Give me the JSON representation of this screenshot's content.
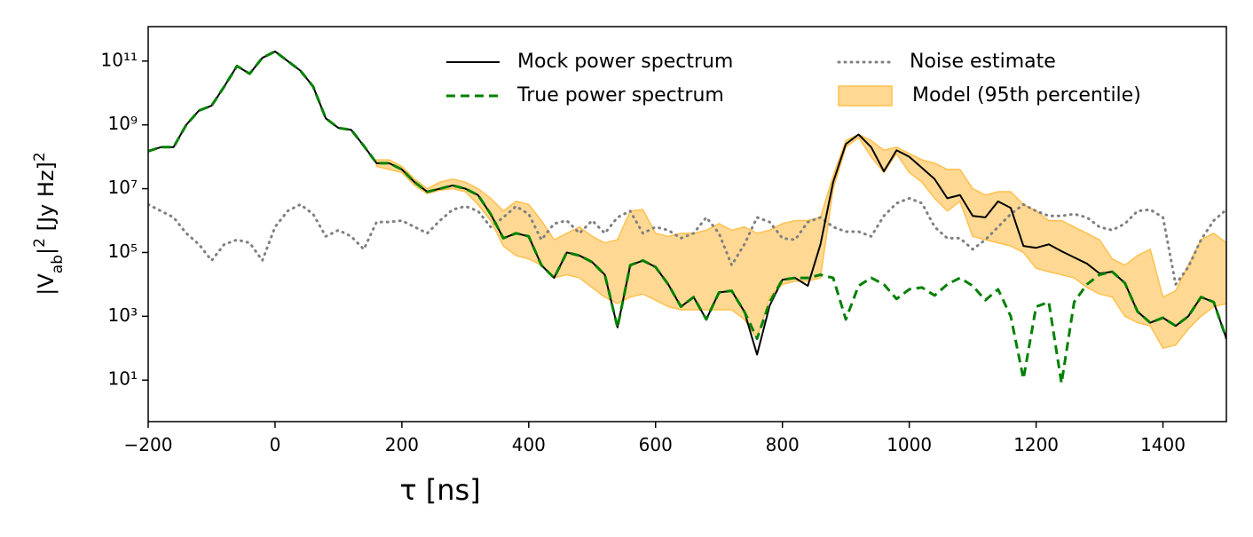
{
  "chart_data": {
    "type": "line",
    "xlabel": "τ [ns]",
    "ylabel": [
      "|V",
      "ab",
      "|",
      "2",
      " [Jy Hz]",
      "2"
    ],
    "log_y": true,
    "legend": "upper right",
    "xlim": [
      -200,
      1500
    ],
    "xticks": [
      {
        "value": -200,
        "label": "−200"
      },
      0,
      200,
      400,
      600,
      800,
      1000,
      1200,
      1400
    ],
    "ylim": [
      0.5,
      1200000000000.0
    ],
    "yticks": [
      {
        "value": 10,
        "label": "10¹"
      },
      {
        "value": 1000,
        "label": "10³"
      },
      {
        "value": 100000,
        "label": "10⁵"
      },
      {
        "value": 10000000,
        "label": "10⁷"
      },
      {
        "value": 1000000000,
        "label": "10⁹"
      },
      {
        "value": 100000000000,
        "label": "10¹¹"
      }
    ],
    "x": [
      -200,
      -180,
      -160,
      -140,
      -120,
      -100,
      -80,
      -60,
      -40,
      -20,
      0,
      20,
      40,
      60,
      80,
      100,
      120,
      140,
      160,
      180,
      200,
      220,
      240,
      260,
      280,
      300,
      320,
      340,
      360,
      380,
      400,
      420,
      440,
      460,
      480,
      500,
      520,
      540,
      560,
      580,
      600,
      620,
      640,
      660,
      680,
      700,
      720,
      740,
      760,
      780,
      800,
      820,
      840,
      860,
      880,
      900,
      920,
      940,
      960,
      980,
      1000,
      1020,
      1040,
      1060,
      1080,
      1100,
      1120,
      1140,
      1160,
      1180,
      1200,
      1220,
      1240,
      1260,
      1280,
      1300,
      1320,
      1340,
      1360,
      1380,
      1400,
      1420,
      1440,
      1460,
      1480,
      1500
    ],
    "band": {
      "name": "Model (95th percentile)",
      "color": "#ffc04d",
      "upper": [
        null,
        null,
        null,
        null,
        null,
        null,
        null,
        null,
        null,
        null,
        null,
        null,
        null,
        null,
        null,
        null,
        null,
        null,
        80000000.0,
        80000000.0,
        50000000.0,
        20000000.0,
        10000000.0,
        16000000.0,
        20000000.0,
        16000000.0,
        10000000.0,
        5000000.0,
        2000000.0,
        4000000.0,
        3200000.0,
        1000000.0,
        250000.0,
        400000.0,
        630000.0,
        320000.0,
        200000.0,
        250000.0,
        2000000.0,
        2200000.0,
        400000.0,
        320000.0,
        400000.0,
        400000.0,
        500000.0,
        800000.0,
        500000.0,
        630000.0,
        400000.0,
        500000.0,
        800000.0,
        1000000.0,
        1000000.0,
        1260000.0,
        25000000.0,
        320000000.0,
        500000000.0,
        320000000.0,
        160000000.0,
        200000000.0,
        126000000.0,
        80000000.0,
        63000000.0,
        40000000.0,
        40000000.0,
        10000000.0,
        6300000.0,
        8000000.0,
        8000000.0,
        3200000.0,
        2000000.0,
        1000000.0,
        1000000.0,
        630000.0,
        400000.0,
        250000.0,
        63000.0,
        40000.0,
        80000.0,
        126000.0,
        4000,
        6300,
        40000.0,
        250000.0,
        400000.0,
        200000.0
      ],
      "lower": [
        null,
        null,
        null,
        null,
        null,
        null,
        null,
        null,
        null,
        null,
        null,
        null,
        null,
        null,
        null,
        null,
        null,
        null,
        50000000.0,
        40000000.0,
        32000000.0,
        12600000.0,
        7000000.0,
        9000000.0,
        10000000.0,
        8000000.0,
        3200000.0,
        1000000.0,
        160000.0,
        80000.0,
        63000.0,
        40000.0,
        16000.0,
        20000.0,
        16000.0,
        8000,
        4000,
        2500,
        4000,
        5000,
        3200,
        2000,
        1600,
        1600,
        1600,
        1600,
        1600,
        800,
        200,
        4000,
        10000.0,
        12600.0,
        12600.0,
        16000.0,
        10000000.0,
        200000000.0,
        400000000.0,
        100000000.0,
        32000000.0,
        126000000.0,
        32000000.0,
        16000000.0,
        5000000.0,
        2000000.0,
        4000000.0,
        320000.0,
        250000.0,
        200000.0,
        160000.0,
        100000.0,
        32000.0,
        25000.0,
        20000.0,
        16000.0,
        8000,
        5000,
        4000,
        1000,
        630,
        500,
        100,
        126,
        400,
        1000,
        2000,
        2500
      ]
    },
    "series": [
      {
        "name": "Noise estimate",
        "color": "#808080",
        "style": "dotted",
        "values": [
          3200000.0,
          2000000.0,
          1260000.0,
          400000.0,
          180000.0,
          56000.0,
          180000.0,
          250000.0,
          200000.0,
          56000.0,
          630000.0,
          2000000.0,
          3200000.0,
          1600000.0,
          320000.0,
          500000.0,
          320000.0,
          126000.0,
          900000.0,
          900000.0,
          1000000.0,
          630000.0,
          400000.0,
          1000000.0,
          2200000.0,
          2800000.0,
          2000000.0,
          630000.0,
          1260000.0,
          2800000.0,
          1600000.0,
          250000.0,
          800000.0,
          1000000.0,
          400000.0,
          1000000.0,
          400000.0,
          1260000.0,
          2000000.0,
          400000.0,
          630000.0,
          500000.0,
          280000.0,
          400000.0,
          1260000.0,
          400000.0,
          40000.0,
          180000.0,
          1260000.0,
          900000.0,
          280000.0,
          250000.0,
          900000.0,
          1260000.0,
          630000.0,
          450000.0,
          450000.0,
          320000.0,
          1400000.0,
          3500000.0,
          5000000.0,
          3500000.0,
          630000.0,
          280000.0,
          280000.0,
          126000.0,
          250000.0,
          630000.0,
          1600000.0,
          3200000.0,
          2000000.0,
          1400000.0,
          1400000.0,
          1600000.0,
          1260000.0,
          630000.0,
          500000.0,
          800000.0,
          2000000.0,
          2200000.0,
          1260000.0,
          10000.0,
          35000.0,
          250000.0,
          1000000.0,
          2200000.0
        ]
      },
      {
        "name": "Mock power spectrum",
        "color": "#000000",
        "style": "solid",
        "values": [
          150000000.0,
          200000000.0,
          200000000.0,
          1000000000.0,
          2800000000.0,
          4000000000.0,
          16000000000.0,
          70000000000.0,
          40000000000.0,
          126000000000.0,
          200000000000.0,
          100000000000.0,
          50000000000.0,
          16000000000.0,
          1600000000.0,
          800000000.0,
          700000000.0,
          220000000.0,
          63000000.0,
          63000000.0,
          40000000.0,
          16000000.0,
          8000000.0,
          10000000.0,
          12600000.0,
          10000000.0,
          6300000.0,
          1600000.0,
          280000.0,
          400000.0,
          320000.0,
          40000.0,
          16000.0,
          100000.0,
          80000.0,
          50000.0,
          20000.0,
          450,
          40000.0,
          56000.0,
          35000.0,
          10000.0,
          2000,
          4000,
          800,
          5600,
          6300,
          1400,
          63,
          2200,
          14000.0,
          16000.0,
          9000,
          180000.0,
          16000000.0,
          250000000.0,
          500000000.0,
          200000000.0,
          35000000.0,
          160000000.0,
          100000000.0,
          45000000.0,
          20000000.0,
          5000000.0,
          6300000.0,
          1400000.0,
          1260000.0,
          4000000.0,
          2500000.0,
          160000.0,
          140000.0,
          180000.0,
          110000.0,
          70000.0,
          45000.0,
          22000.0,
          25000.0,
          11000.0,
          1400,
          630,
          900,
          500,
          1000,
          4000,
          2800,
          200
        ]
      },
      {
        "name": "True power spectrum",
        "color": "#008000",
        "style": "dashed",
        "values": [
          150000000.0,
          200000000.0,
          200000000.0,
          1000000000.0,
          2800000000.0,
          4000000000.0,
          16000000000.0,
          70000000000.0,
          40000000000.0,
          126000000000.0,
          200000000000.0,
          100000000000.0,
          50000000000.0,
          16000000000.0,
          1600000000.0,
          800000000.0,
          700000000.0,
          220000000.0,
          63000000.0,
          63000000.0,
          40000000.0,
          16000000.0,
          8000000.0,
          10000000.0,
          12600000.0,
          10000000.0,
          6300000.0,
          1600000.0,
          280000.0,
          400000.0,
          320000.0,
          40000.0,
          16000.0,
          100000.0,
          80000.0,
          50000.0,
          20000.0,
          450,
          40000.0,
          56000.0,
          35000.0,
          10000.0,
          2000,
          4000,
          800,
          5600,
          6300,
          1400,
          200,
          2800,
          14000.0,
          16000.0,
          16000.0,
          20000.0,
          16000.0,
          800,
          9000,
          16000.0,
          10000.0,
          3500,
          7000,
          8000,
          4500,
          10000.0,
          16000.0,
          9000,
          3200,
          7000,
          1000,
          11,
          2000,
          2800,
          8,
          2800,
          10000.0,
          20000.0,
          25000.0,
          11000.0,
          1400,
          630,
          900,
          500,
          1000,
          4000,
          2800,
          200
        ]
      }
    ]
  }
}
